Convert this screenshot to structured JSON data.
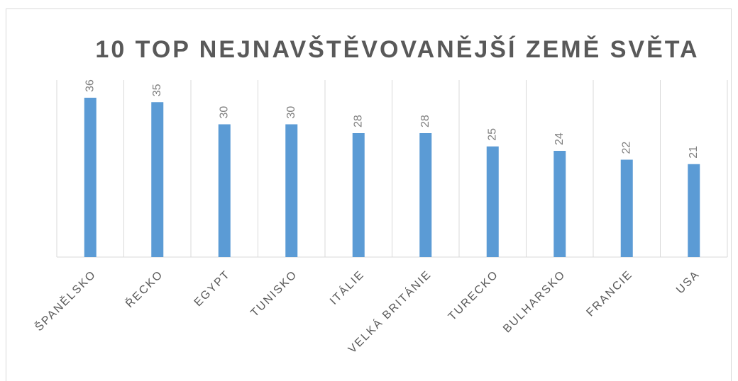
{
  "chart_data": {
    "type": "bar",
    "title": "10 TOP NEJNAVŠTĚVOVANĚJŠÍ ZEMĚ SVĚTA",
    "categories": [
      "ŠPANĚLSKO",
      "ŘECKO",
      "EGYPT",
      "TUNISKO",
      "ITÁLIE",
      "VELKÁ BRITÁNIE",
      "TURECKO",
      "BULHARSKO",
      "FRANCIE",
      "USA"
    ],
    "values": [
      36,
      35,
      30,
      30,
      28,
      28,
      25,
      24,
      22,
      21
    ],
    "color": "#5b9bd5",
    "ylim": [
      0,
      40
    ]
  }
}
